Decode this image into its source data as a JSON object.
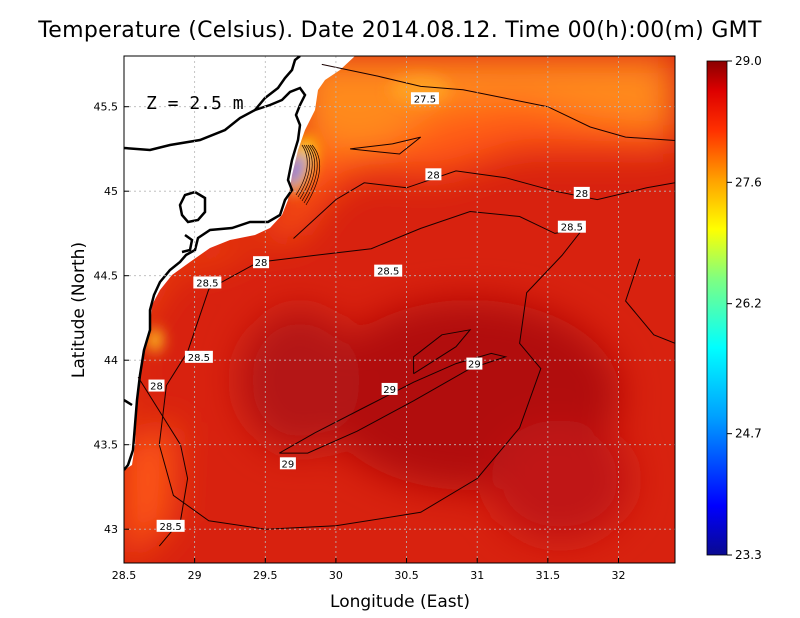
{
  "title": "Temperature (Celsius). Date 2014.08.12. Time 00(h):00(m) GMT",
  "depth_label": "Z = 2.5 m",
  "colors": {
    "base": "#d8220f",
    "deep": "#b11010",
    "warm": "#ff8a1c",
    "shelf": "#ff5a12",
    "land": "#ffffff",
    "coast": "#000000"
  },
  "chart_data": {
    "type": "heatmap",
    "title": "Temperature (Celsius). Date 2014.08.12. Time 00(h):00(m) GMT",
    "xlabel": "Longitude (East)",
    "ylabel": "Latitude (North)",
    "xlim": [
      28.5,
      32.4
    ],
    "ylim": [
      42.8,
      45.8
    ],
    "x_ticks": [
      "28.5",
      "29",
      "29.5",
      "30",
      "30.5",
      "31",
      "31.5",
      "32"
    ],
    "y_ticks": [
      "43",
      "43.5",
      "44",
      "44.5",
      "45",
      "45.5"
    ],
    "grid": true,
    "colorbar": {
      "min": 23.3,
      "max": 29.0,
      "ticks": [
        "29.0",
        "27.6",
        "26.2",
        "24.7",
        "23.3"
      ]
    },
    "contour_labels": [
      {
        "text": "27.5",
        "lon": 30.63,
        "lat": 45.55
      },
      {
        "text": "28",
        "lon": 30.69,
        "lat": 45.1
      },
      {
        "text": "28",
        "lon": 31.74,
        "lat": 44.99
      },
      {
        "text": "28.5",
        "lon": 31.67,
        "lat": 44.79
      },
      {
        "text": "28",
        "lon": 29.47,
        "lat": 44.58
      },
      {
        "text": "28.5",
        "lon": 30.37,
        "lat": 44.53
      },
      {
        "text": "28.5",
        "lon": 29.09,
        "lat": 44.46
      },
      {
        "text": "28.5",
        "lon": 29.03,
        "lat": 44.02
      },
      {
        "text": "28",
        "lon": 28.73,
        "lat": 43.85
      },
      {
        "text": "29",
        "lon": 30.98,
        "lat": 43.98
      },
      {
        "text": "29",
        "lon": 30.38,
        "lat": 43.83
      },
      {
        "text": "29",
        "lon": 29.66,
        "lat": 43.39
      },
      {
        "text": "28.5",
        "lon": 28.83,
        "lat": 43.02
      }
    ],
    "contours": [
      {
        "level": 29,
        "points": [
          [
            29.6,
            43.45
          ],
          [
            29.85,
            43.57
          ],
          [
            30.2,
            43.72
          ],
          [
            30.55,
            43.87
          ],
          [
            30.85,
            43.98
          ],
          [
            31.1,
            44.04
          ],
          [
            31.2,
            44.02
          ],
          [
            30.95,
            43.95
          ],
          [
            30.55,
            43.76
          ],
          [
            30.15,
            43.58
          ],
          [
            29.8,
            43.45
          ],
          [
            29.6,
            43.45
          ]
        ]
      },
      {
        "level": 29,
        "points": [
          [
            30.55,
            43.92
          ],
          [
            30.85,
            44.08
          ],
          [
            30.95,
            44.18
          ],
          [
            30.75,
            44.15
          ],
          [
            30.55,
            44.02
          ],
          [
            30.55,
            43.92
          ]
        ]
      },
      {
        "level": 28.5,
        "points": [
          [
            28.95,
            44.05
          ],
          [
            29.1,
            44.42
          ],
          [
            29.45,
            44.58
          ],
          [
            29.85,
            44.62
          ],
          [
            30.25,
            44.66
          ],
          [
            30.6,
            44.78
          ],
          [
            30.95,
            44.88
          ],
          [
            31.3,
            44.85
          ],
          [
            31.55,
            44.75
          ],
          [
            31.75,
            44.78
          ],
          [
            31.6,
            44.62
          ],
          [
            31.35,
            44.4
          ],
          [
            31.3,
            44.1
          ],
          [
            31.45,
            43.95
          ],
          [
            31.3,
            43.6
          ],
          [
            31.0,
            43.3
          ],
          [
            30.6,
            43.1
          ],
          [
            30.0,
            43.02
          ],
          [
            29.5,
            43.0
          ],
          [
            29.1,
            43.05
          ],
          [
            28.85,
            43.2
          ],
          [
            28.75,
            43.5
          ],
          [
            28.8,
            43.85
          ],
          [
            28.95,
            44.05
          ]
        ]
      },
      {
        "level": 28,
        "points": [
          [
            29.7,
            44.72
          ],
          [
            30.0,
            44.95
          ],
          [
            30.2,
            45.05
          ],
          [
            30.5,
            45.02
          ],
          [
            30.85,
            45.12
          ],
          [
            31.2,
            45.08
          ],
          [
            31.55,
            45.0
          ],
          [
            31.85,
            44.95
          ],
          [
            32.2,
            45.02
          ],
          [
            32.4,
            45.05
          ]
        ]
      },
      {
        "level": 28,
        "points": [
          [
            28.6,
            43.9
          ],
          [
            28.75,
            43.7
          ],
          [
            28.9,
            43.5
          ],
          [
            28.95,
            43.3
          ],
          [
            28.9,
            43.05
          ],
          [
            28.75,
            42.9
          ]
        ]
      },
      {
        "level": 28,
        "points": [
          [
            32.15,
            44.6
          ],
          [
            32.05,
            44.35
          ],
          [
            32.25,
            44.15
          ],
          [
            32.4,
            44.1
          ]
        ]
      },
      {
        "level": 27.5,
        "points": [
          [
            29.9,
            45.75
          ],
          [
            30.3,
            45.68
          ],
          [
            30.6,
            45.62
          ],
          [
            30.9,
            45.6
          ],
          [
            31.2,
            45.55
          ],
          [
            31.5,
            45.5
          ],
          [
            31.8,
            45.38
          ],
          [
            32.05,
            45.32
          ],
          [
            32.4,
            45.3
          ]
        ]
      },
      {
        "level": 27.5,
        "points": [
          [
            30.1,
            45.25
          ],
          [
            30.4,
            45.28
          ],
          [
            30.6,
            45.32
          ],
          [
            30.45,
            45.22
          ],
          [
            30.1,
            45.25
          ]
        ]
      }
    ]
  }
}
